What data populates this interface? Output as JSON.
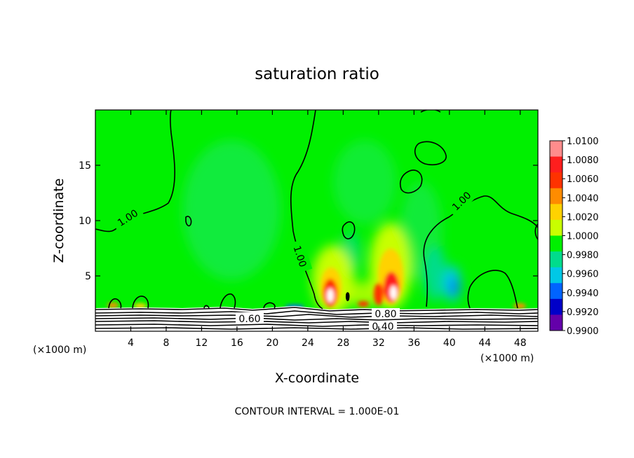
{
  "chart_data": {
    "type": "heatmap",
    "title": "saturation ratio",
    "xlabel": "X-coordinate",
    "ylabel": "Z-coordinate",
    "x_unit": "(×1000 m)",
    "z_unit": "(×1000 m)",
    "xlim": [
      0,
      50
    ],
    "ylim": [
      0,
      20
    ],
    "x_ticks": [
      4,
      8,
      12,
      16,
      20,
      24,
      28,
      32,
      36,
      40,
      44,
      48
    ],
    "y_ticks": [
      5,
      10,
      15
    ],
    "footer": "CONTOUR INTERVAL = 1.000E-01",
    "colorbar": {
      "levels": [
        "1.0100",
        "1.0080",
        "1.0060",
        "1.0040",
        "1.0020",
        "1.0000",
        "0.9980",
        "0.9960",
        "0.9940",
        "0.9920",
        "0.9900"
      ],
      "colors": [
        "#ff8c8c",
        "#ff1e1e",
        "#ff3200",
        "#ff8c00",
        "#ffd200",
        "#c8ff00",
        "#00f000",
        "#00dc8c",
        "#00c8e6",
        "#0064ff",
        "#0000c8",
        "#6400aa"
      ]
    },
    "contour_labels": [
      {
        "text": "1.00",
        "x": 2.6,
        "z": 10.2
      },
      {
        "text": "1.00",
        "x": 23.0,
        "z": 6.8
      },
      {
        "text": "1.00",
        "x": 43.0,
        "z": 11.3
      },
      {
        "text": "0.60",
        "x": 16.0,
        "z": 1.0
      },
      {
        "text": "0.80",
        "x": 32.0,
        "z": 1.5
      },
      {
        "text": "0.40",
        "x": 32.0,
        "z": 0.4
      }
    ]
  }
}
